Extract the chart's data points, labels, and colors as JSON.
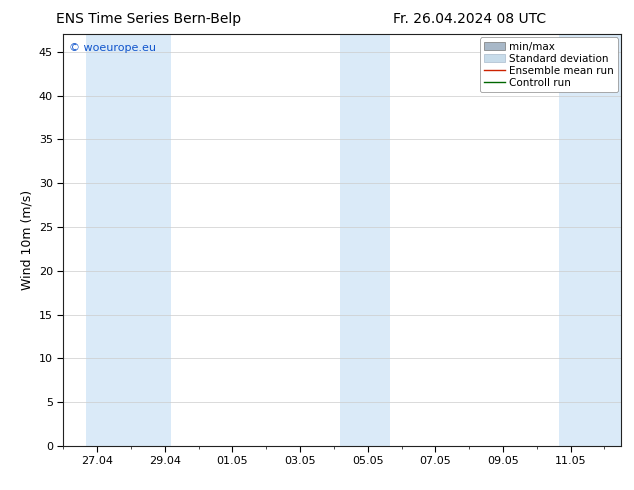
{
  "title_left": "ENS Time Series Bern-Belp",
  "title_right": "Fr. 26.04.2024 08 UTC",
  "ylabel": "Wind 10m (m/s)",
  "watermark": "© woeurope.eu",
  "ylim": [
    0,
    47
  ],
  "yticks": [
    0,
    5,
    10,
    15,
    20,
    25,
    30,
    35,
    40,
    45
  ],
  "band_color": "#daeaf8",
  "background_color": "#ffffff",
  "legend_labels": [
    "min/max",
    "Standard deviation",
    "Ensemble mean run",
    "Controll run"
  ],
  "minmax_color": "#a8b8c8",
  "stddev_color": "#c8dcea",
  "ensemble_color": "#cc2200",
  "control_color": "#006600",
  "x_tick_labels": [
    "27.04",
    "29.04",
    "01.05",
    "03.05",
    "05.05",
    "07.05",
    "09.05",
    "11.05"
  ],
  "x_tick_days": [
    1.0,
    3.0,
    5.0,
    7.0,
    9.0,
    11.0,
    13.0,
    15.0
  ],
  "xlim": [
    0,
    16.5
  ],
  "bands": [
    {
      "start": 0.67,
      "end": 3.17
    },
    {
      "start": 8.17,
      "end": 9.67
    },
    {
      "start": 14.67,
      "end": 16.5
    }
  ],
  "title_fontsize": 10,
  "tick_fontsize": 8,
  "legend_fontsize": 7.5,
  "ylabel_fontsize": 9,
  "watermark_fontsize": 8
}
